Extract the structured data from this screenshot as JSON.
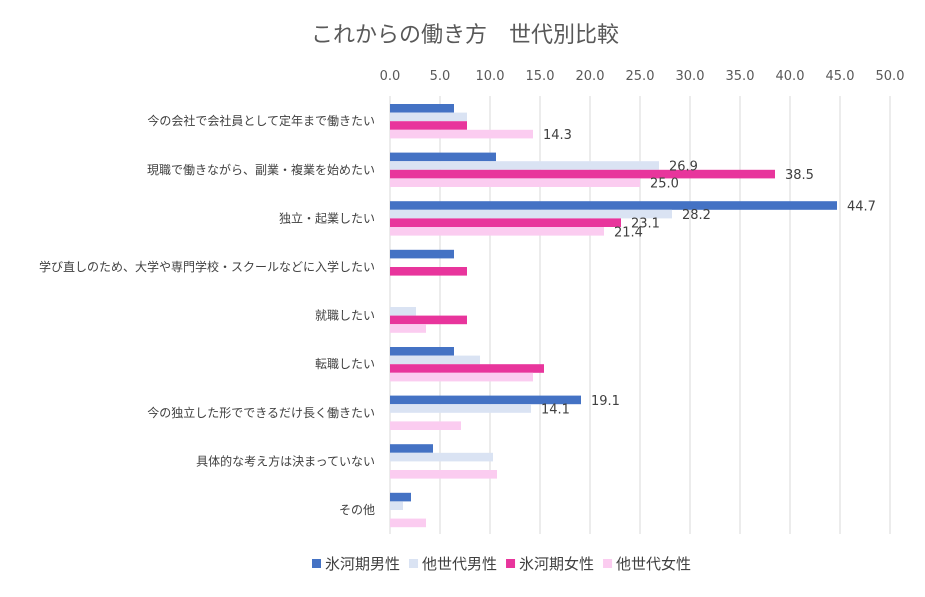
{
  "chart_data": {
    "type": "bar",
    "orientation": "horizontal",
    "title": "これからの働き方　世代別比較",
    "xlim": [
      0,
      50
    ],
    "xticks": [
      "0.0",
      "5.0",
      "10.0",
      "15.0",
      "20.0",
      "25.0",
      "30.0",
      "35.0",
      "40.0",
      "45.0",
      "50.0"
    ],
    "xaxis_position": "top",
    "grid": true,
    "legend_position": "bottom",
    "categories": [
      "今の会社で会社員として定年まで働きたい",
      "現職で働きながら、副業・複業を始めたい",
      "独立・起業したい",
      "学び直しのため、大学や専門学校・スクールなどに入学したい",
      "就職したい",
      "転職したい",
      "今の独立した形でできるだけ長く働きたい",
      "具体的な考え方は決まっていない",
      "その他"
    ],
    "series": [
      {
        "name": "氷河期男性",
        "color": "#4472c4",
        "values": [
          6.4,
          10.6,
          44.7,
          6.4,
          0,
          6.4,
          19.1,
          4.3,
          2.1
        ],
        "labels": [
          "",
          "",
          "44.7",
          "",
          "",
          "",
          "19.1",
          "",
          ""
        ]
      },
      {
        "name": "他世代男性",
        "color": "#dae3f3",
        "values": [
          7.7,
          26.9,
          28.2,
          0,
          2.6,
          9.0,
          14.1,
          10.3,
          1.3
        ],
        "labels": [
          "",
          "26.9",
          "28.2",
          "",
          "",
          "",
          "14.1",
          "",
          ""
        ]
      },
      {
        "name": "氷河期女性",
        "color": "#e8359c",
        "values": [
          7.7,
          38.5,
          23.1,
          7.7,
          7.7,
          15.4,
          0,
          0,
          0
        ],
        "labels": [
          "",
          "38.5",
          "23.1",
          "",
          "",
          "",
          "",
          "",
          ""
        ]
      },
      {
        "name": "他世代女性",
        "color": "#fbccf0",
        "values": [
          14.3,
          25.0,
          21.4,
          0,
          3.6,
          14.3,
          7.1,
          10.7,
          3.6
        ],
        "labels": [
          "14.3",
          "25.0",
          "21.4",
          "",
          "",
          "",
          "",
          "",
          ""
        ]
      }
    ]
  }
}
